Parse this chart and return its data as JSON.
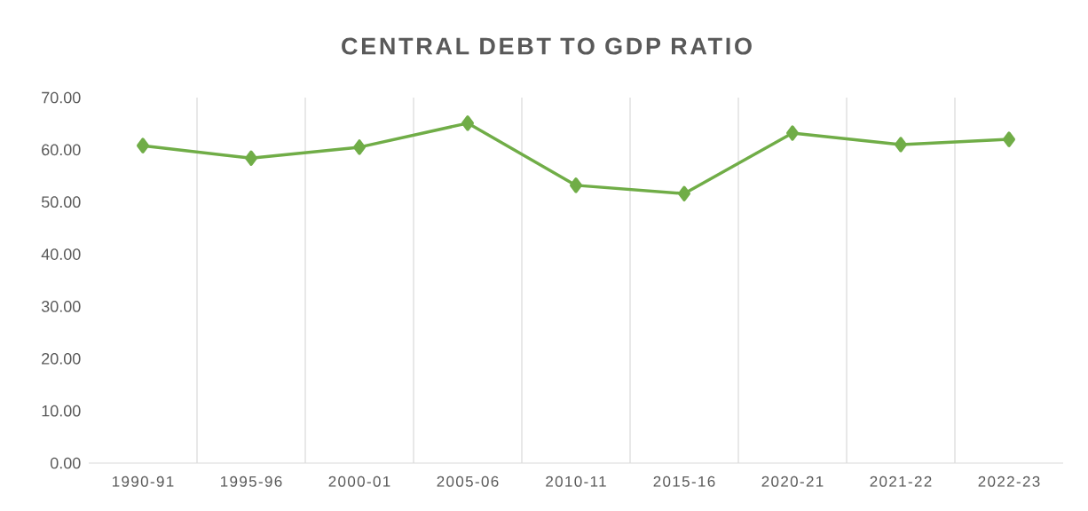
{
  "chart_data": {
    "type": "line",
    "title": "CENTRAL DEBT TO GDP RATIO",
    "categories": [
      "1990-91",
      "1995-96",
      "2000-01",
      "2005-06",
      "2010-11",
      "2015-16",
      "2020-21",
      "2021-22",
      "2022-23"
    ],
    "values": [
      60.8,
      58.4,
      60.5,
      65.1,
      53.2,
      51.6,
      63.2,
      61.0,
      62.0
    ],
    "color": "#70ad47",
    "marker": "diamond",
    "line_style": "solid",
    "ylim": [
      0,
      70
    ],
    "yticks": [
      {
        "value": 0,
        "label": "0.00"
      },
      {
        "value": 10,
        "label": "10.00"
      },
      {
        "value": 20,
        "label": "20.00"
      },
      {
        "value": 30,
        "label": "30.00"
      },
      {
        "value": 40,
        "label": "40.00"
      },
      {
        "value": 50,
        "label": "50.00"
      },
      {
        "value": 60,
        "label": "60.00"
      },
      {
        "value": 70,
        "label": "70.00"
      }
    ],
    "grid": "x"
  }
}
